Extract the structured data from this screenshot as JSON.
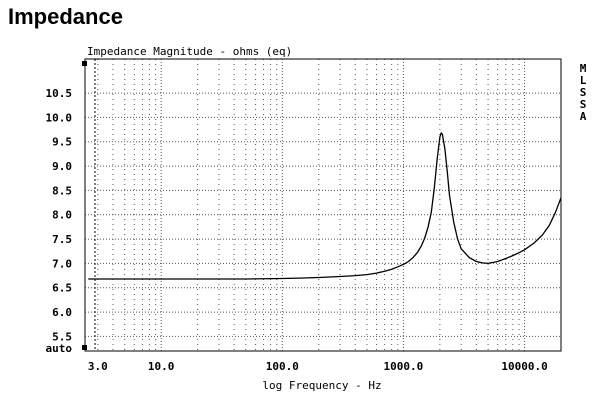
{
  "page": {
    "heading": "Impedance"
  },
  "chart_data": {
    "type": "line",
    "title": "Impedance Magnitude - ohms (eq)",
    "xlabel": "log Frequency - Hz",
    "ylabel": "",
    "xscale": "log",
    "xlim": [
      2.35,
      20000
    ],
    "ylim": [
      5.2,
      11.2
    ],
    "grid": true,
    "x_ticks": [
      {
        "value": 3,
        "label": "3.0"
      },
      {
        "value": 10,
        "label": "10.0"
      },
      {
        "value": 100,
        "label": "100.0"
      },
      {
        "value": 1000,
        "label": "1000.0"
      },
      {
        "value": 10000,
        "label": "10000.0"
      }
    ],
    "y_ticks": [
      {
        "value": 5.5,
        "label": "5.5"
      },
      {
        "value": 6.0,
        "label": "6.0"
      },
      {
        "value": 6.5,
        "label": "6.5"
      },
      {
        "value": 7.0,
        "label": "7.0"
      },
      {
        "value": 7.5,
        "label": "7.5"
      },
      {
        "value": 8.0,
        "label": "8.0"
      },
      {
        "value": 8.5,
        "label": "8.5"
      },
      {
        "value": 9.0,
        "label": "9.0"
      },
      {
        "value": 9.5,
        "label": "9.5"
      },
      {
        "value": 10.0,
        "label": "10.0"
      },
      {
        "value": 10.5,
        "label": "10.5"
      }
    ],
    "y_bottom_label": "auto",
    "side_label": "MLSSA",
    "series": [
      {
        "color": "#000000",
        "points": [
          [
            2.5,
            6.68
          ],
          [
            10,
            6.68
          ],
          [
            50,
            6.68
          ],
          [
            100,
            6.69
          ],
          [
            150,
            6.7
          ],
          [
            200,
            6.71
          ],
          [
            300,
            6.73
          ],
          [
            400,
            6.75
          ],
          [
            500,
            6.77
          ],
          [
            600,
            6.8
          ],
          [
            700,
            6.84
          ],
          [
            800,
            6.88
          ],
          [
            900,
            6.93
          ],
          [
            1000,
            6.98
          ],
          [
            1100,
            7.04
          ],
          [
            1200,
            7.12
          ],
          [
            1300,
            7.22
          ],
          [
            1400,
            7.35
          ],
          [
            1500,
            7.52
          ],
          [
            1600,
            7.75
          ],
          [
            1700,
            8.05
          ],
          [
            1800,
            8.55
          ],
          [
            1900,
            9.15
          ],
          [
            2000,
            9.6
          ],
          [
            2050,
            9.68
          ],
          [
            2100,
            9.65
          ],
          [
            2200,
            9.35
          ],
          [
            2300,
            8.9
          ],
          [
            2400,
            8.4
          ],
          [
            2600,
            7.85
          ],
          [
            2800,
            7.5
          ],
          [
            3000,
            7.3
          ],
          [
            3500,
            7.12
          ],
          [
            4000,
            7.04
          ],
          [
            4500,
            7.01
          ],
          [
            5000,
            7.0
          ],
          [
            6000,
            7.04
          ],
          [
            7000,
            7.1
          ],
          [
            8000,
            7.16
          ],
          [
            9000,
            7.22
          ],
          [
            10000,
            7.28
          ],
          [
            12000,
            7.42
          ],
          [
            14000,
            7.58
          ],
          [
            16000,
            7.78
          ],
          [
            18000,
            8.05
          ],
          [
            20000,
            8.35
          ]
        ]
      }
    ]
  }
}
